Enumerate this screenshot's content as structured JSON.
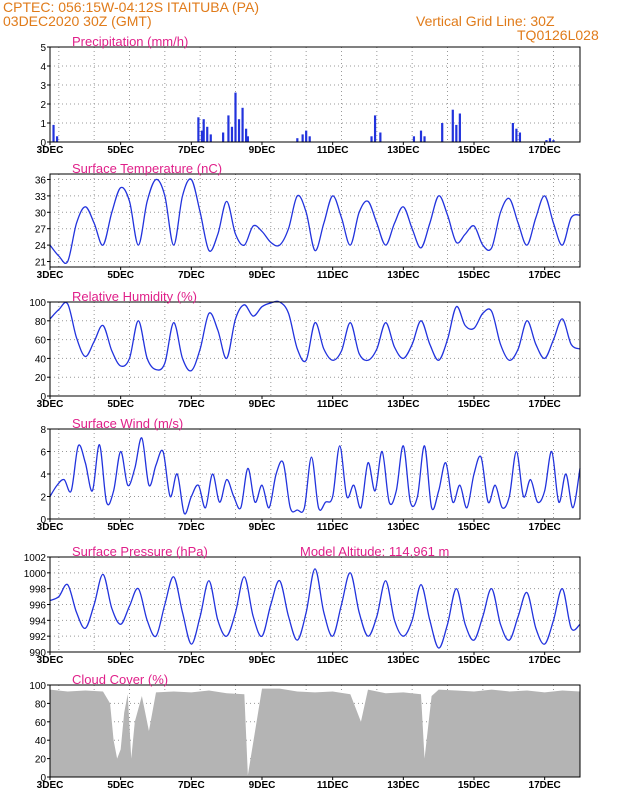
{
  "header": {
    "line1_left": "CPTEC:   056:15W-04:12S   ITAITUBA (PA)",
    "line2_left": "03DEC2020 30Z (GMT)",
    "line1_right": "Vertical Grid Line: 30Z",
    "line2_right": "TQ0126L028"
  },
  "colors": {
    "header": "#e07b1a",
    "title": "#e0208a",
    "line": "#2233dd",
    "cloud": "#b4b4b4"
  },
  "chart_data": [
    {
      "type": "bar",
      "title": "Precipitation (mm/h)",
      "ylim": [
        0,
        5
      ],
      "yticks": [
        "0",
        "1",
        "2",
        "3",
        "4",
        "5"
      ],
      "xticks": [
        "3DEC",
        "5DEC",
        "7DEC",
        "9DEC",
        "11DEC",
        "13DEC",
        "15DEC",
        "17DEC"
      ],
      "x_days": [
        3.1,
        3.2,
        7.2,
        7.3,
        7.35,
        7.45,
        7.55,
        7.9,
        8.05,
        8.15,
        8.25,
        8.35,
        8.45,
        8.55,
        8.6,
        10.0,
        10.15,
        10.25,
        10.35,
        12.1,
        12.2,
        12.35,
        13.3,
        13.5,
        13.6,
        14.1,
        14.4,
        14.5,
        14.6,
        16.1,
        16.2,
        16.3,
        17.05,
        17.15,
        17.25
      ],
      "values": [
        0.9,
        0.3,
        1.3,
        0.6,
        1.2,
        0.8,
        0.4,
        0.5,
        1.4,
        0.8,
        2.6,
        1.2,
        1.8,
        0.7,
        0.3,
        0.2,
        0.4,
        0.6,
        0.3,
        0.3,
        1.4,
        0.5,
        0.3,
        0.6,
        0.3,
        1.0,
        1.7,
        0.9,
        1.5,
        1.0,
        0.7,
        0.5,
        0.1,
        0.2,
        0.1
      ]
    },
    {
      "type": "line",
      "title": "Surface Temperature (nC)",
      "ylim": [
        20,
        37
      ],
      "yticks": [
        "21",
        "24",
        "27",
        "30",
        "33",
        "36"
      ],
      "xticks": [
        "3DEC",
        "5DEC",
        "7DEC",
        "9DEC",
        "11DEC",
        "13DEC",
        "15DEC",
        "17DEC"
      ],
      "x_days": [
        3.0,
        3.25,
        3.5,
        3.75,
        4.0,
        4.25,
        4.5,
        4.75,
        5.0,
        5.25,
        5.5,
        5.75,
        6.0,
        6.25,
        6.5,
        6.75,
        7.0,
        7.25,
        7.5,
        7.75,
        8.0,
        8.25,
        8.5,
        8.75,
        9.0,
        9.25,
        9.5,
        9.75,
        10.0,
        10.25,
        10.5,
        10.75,
        11.0,
        11.25,
        11.5,
        11.75,
        12.0,
        12.25,
        12.5,
        12.75,
        13.0,
        13.25,
        13.5,
        13.75,
        14.0,
        14.25,
        14.5,
        14.75,
        15.0,
        15.25,
        15.5,
        15.75,
        16.0,
        16.25,
        16.5,
        16.75,
        17.0,
        17.25,
        17.5,
        17.75,
        18.0
      ],
      "values": [
        24.0,
        22.0,
        21.0,
        28.0,
        31.0,
        28.0,
        24.0,
        30.0,
        34.5,
        32.0,
        24.0,
        32.0,
        36.0,
        33.0,
        24.0,
        33.0,
        36.0,
        30.0,
        23.0,
        26.0,
        32.0,
        26.0,
        24.0,
        27.5,
        26.5,
        24.5,
        24.0,
        27.0,
        33.0,
        30.0,
        23.0,
        28.0,
        33.0,
        29.0,
        24.0,
        30.0,
        32.0,
        28.0,
        24.0,
        28.0,
        31.0,
        27.0,
        23.5,
        28.0,
        33.0,
        29.5,
        24.5,
        26.0,
        27.5,
        24.0,
        23.5,
        30.0,
        32.5,
        28.0,
        24.0,
        29.0,
        33.0,
        28.0,
        24.0,
        29.0,
        29.5
      ]
    },
    {
      "type": "line",
      "title": "Relative Humidity (%)",
      "ylim": [
        0,
        100
      ],
      "yticks": [
        "0",
        "20",
        "40",
        "60",
        "80",
        "100"
      ],
      "xticks": [
        "3DEC",
        "5DEC",
        "7DEC",
        "9DEC",
        "11DEC",
        "13DEC",
        "15DEC",
        "17DEC"
      ],
      "x_days": [
        3.0,
        3.25,
        3.5,
        3.75,
        4.0,
        4.25,
        4.5,
        4.75,
        5.0,
        5.25,
        5.5,
        5.75,
        6.0,
        6.25,
        6.5,
        6.75,
        7.0,
        7.25,
        7.5,
        7.75,
        8.0,
        8.25,
        8.5,
        8.75,
        9.0,
        9.25,
        9.5,
        9.75,
        10.0,
        10.25,
        10.5,
        10.75,
        11.0,
        11.25,
        11.5,
        11.75,
        12.0,
        12.25,
        12.5,
        12.75,
        13.0,
        13.25,
        13.5,
        13.75,
        14.0,
        14.25,
        14.5,
        14.75,
        15.0,
        15.25,
        15.5,
        15.75,
        16.0,
        16.25,
        16.5,
        16.75,
        17.0,
        17.25,
        17.5,
        17.75,
        18.0
      ],
      "values": [
        82.0,
        92.0,
        98.0,
        62.0,
        42.0,
        58.0,
        75.0,
        48.0,
        32.0,
        40.0,
        80.0,
        40.0,
        28.0,
        35.0,
        78.0,
        40.0,
        27.0,
        50.0,
        88.0,
        70.0,
        40.0,
        82.0,
        97.0,
        85.0,
        95.0,
        99.0,
        100.0,
        88.0,
        50.0,
        38.0,
        78.0,
        50.0,
        38.0,
        48.0,
        78.0,
        45.0,
        38.0,
        50.0,
        78.0,
        52.0,
        40.0,
        55.0,
        80.0,
        55.0,
        38.0,
        60.0,
        95.0,
        75.0,
        72.0,
        88.0,
        90.0,
        55.0,
        38.0,
        50.0,
        80.0,
        55.0,
        40.0,
        60.0,
        82.0,
        55.0,
        50.0
      ]
    },
    {
      "type": "line",
      "title": "Surface Wind (m/s)",
      "ylim": [
        0,
        8
      ],
      "yticks": [
        "0",
        "2",
        "4",
        "6",
        "8"
      ],
      "xticks": [
        "3DEC",
        "5DEC",
        "7DEC",
        "9DEC",
        "11DEC",
        "13DEC",
        "15DEC",
        "17DEC"
      ],
      "x_days": [
        3.0,
        3.2,
        3.4,
        3.6,
        3.8,
        4.0,
        4.2,
        4.4,
        4.6,
        4.8,
        5.0,
        5.2,
        5.4,
        5.6,
        5.8,
        6.0,
        6.2,
        6.4,
        6.6,
        6.8,
        7.0,
        7.2,
        7.4,
        7.6,
        7.8,
        8.0,
        8.2,
        8.4,
        8.6,
        8.8,
        9.0,
        9.2,
        9.4,
        9.6,
        9.8,
        10.0,
        10.2,
        10.4,
        10.6,
        10.8,
        11.0,
        11.2,
        11.4,
        11.6,
        11.8,
        12.0,
        12.2,
        12.4,
        12.6,
        12.8,
        13.0,
        13.2,
        13.4,
        13.6,
        13.8,
        14.0,
        14.2,
        14.4,
        14.6,
        14.8,
        15.0,
        15.2,
        15.4,
        15.6,
        15.8,
        16.0,
        16.2,
        16.4,
        16.6,
        16.8,
        17.0,
        17.2,
        17.4,
        17.6,
        17.8,
        18.0
      ],
      "values": [
        2.0,
        3.0,
        3.5,
        2.5,
        6.5,
        5.0,
        2.5,
        6.6,
        1.5,
        2.5,
        6.0,
        3.0,
        4.5,
        7.2,
        3.0,
        4.8,
        6.0,
        2.0,
        4.0,
        0.5,
        2.0,
        3.0,
        1.0,
        4.0,
        1.5,
        3.5,
        2.0,
        1.0,
        4.5,
        1.5,
        3.0,
        1.0,
        4.0,
        5.0,
        1.0,
        0.8,
        1.0,
        5.5,
        1.0,
        1.5,
        2.0,
        6.5,
        2.0,
        3.0,
        1.0,
        5.0,
        2.5,
        6.0,
        1.5,
        2.5,
        6.5,
        1.5,
        2.0,
        6.5,
        1.0,
        2.5,
        5.0,
        1.5,
        3.0,
        1.0,
        4.0,
        5.5,
        1.5,
        3.0,
        1.0,
        2.0,
        6.0,
        2.0,
        3.5,
        1.5,
        2.5,
        6.0,
        1.5,
        4.0,
        1.0,
        4.5
      ]
    },
    {
      "type": "line",
      "title": "Surface Pressure (hPa)",
      "annotation": "Model Altitude: 114.961 m",
      "ylim": [
        990,
        1002
      ],
      "yticks": [
        "990",
        "992",
        "994",
        "996",
        "998",
        "1000",
        "1002"
      ],
      "xticks": [
        "3DEC",
        "5DEC",
        "7DEC",
        "9DEC",
        "11DEC",
        "13DEC",
        "15DEC",
        "17DEC"
      ],
      "x_days": [
        3.0,
        3.25,
        3.5,
        3.75,
        4.0,
        4.25,
        4.5,
        4.75,
        5.0,
        5.25,
        5.5,
        5.75,
        6.0,
        6.25,
        6.5,
        6.75,
        7.0,
        7.25,
        7.5,
        7.75,
        8.0,
        8.25,
        8.5,
        8.75,
        9.0,
        9.25,
        9.5,
        9.75,
        10.0,
        10.25,
        10.5,
        10.75,
        11.0,
        11.25,
        11.5,
        11.75,
        12.0,
        12.25,
        12.5,
        12.75,
        13.0,
        13.25,
        13.5,
        13.75,
        14.0,
        14.25,
        14.5,
        14.75,
        15.0,
        15.25,
        15.5,
        15.75,
        16.0,
        16.25,
        16.5,
        16.75,
        17.0,
        17.25,
        17.5,
        17.75,
        18.0
      ],
      "values": [
        996.5,
        997.0,
        998.5,
        995.0,
        993.0,
        996.0,
        999.8,
        995.5,
        993.5,
        995.8,
        998.0,
        994.0,
        992.0,
        996.0,
        999.5,
        995.0,
        991.0,
        994.5,
        999.0,
        994.0,
        992.0,
        995.0,
        999.5,
        994.5,
        992.0,
        996.0,
        999.0,
        994.5,
        991.5,
        995.0,
        1000.5,
        995.0,
        992.0,
        996.0,
        1000.0,
        995.0,
        992.0,
        994.5,
        999.0,
        994.0,
        992.0,
        994.0,
        998.5,
        994.0,
        990.5,
        993.5,
        998.0,
        993.5,
        991.5,
        994.5,
        998.0,
        993.5,
        991.5,
        994.5,
        997.5,
        993.0,
        991.0,
        994.0,
        998.0,
        993.0,
        993.5
      ]
    },
    {
      "type": "area",
      "title": "Cloud Cover (%)",
      "ylim": [
        0,
        100
      ],
      "yticks": [
        "0",
        "20",
        "40",
        "60",
        "80",
        "100"
      ],
      "xticks": [
        "3DEC",
        "5DEC",
        "7DEC",
        "9DEC",
        "11DEC",
        "13DEC",
        "15DEC",
        "17DEC"
      ],
      "x_days": [
        3.0,
        3.5,
        4.0,
        4.5,
        4.7,
        4.8,
        4.9,
        5.0,
        5.1,
        5.2,
        5.3,
        5.4,
        5.6,
        5.8,
        6.0,
        6.5,
        7.0,
        7.5,
        8.0,
        8.5,
        8.6,
        9.0,
        9.5,
        10.0,
        10.5,
        11.0,
        11.5,
        11.8,
        12.0,
        12.5,
        13.0,
        13.5,
        13.6,
        13.8,
        14.0,
        14.5,
        15.0,
        15.5,
        16.0,
        16.5,
        17.0,
        17.5,
        18.0
      ],
      "values": [
        95.0,
        93.0,
        94.0,
        93.0,
        80.0,
        40.0,
        20.0,
        30.0,
        70.0,
        90.0,
        20.0,
        60.0,
        88.0,
        50.0,
        92.0,
        93.0,
        92.0,
        94.0,
        91.0,
        90.0,
        2.0,
        96.0,
        96.0,
        93.0,
        92.0,
        93.0,
        90.0,
        60.0,
        95.0,
        91.0,
        92.0,
        90.0,
        20.0,
        88.0,
        95.0,
        94.0,
        93.0,
        95.0,
        93.0,
        94.0,
        92.0,
        94.0,
        93.0
      ]
    }
  ]
}
